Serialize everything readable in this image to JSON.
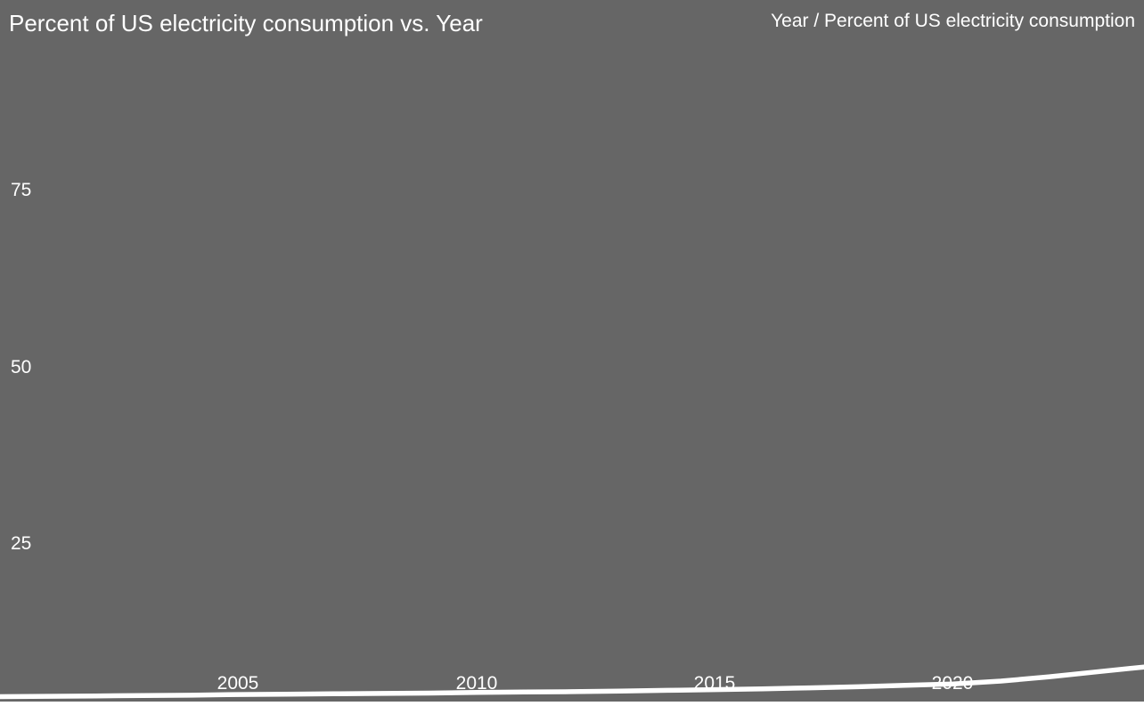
{
  "title": "Percent of US electricity consumption vs. Year",
  "frame_label": "Year / Percent of US electricity consumption",
  "chart_data": {
    "type": "line",
    "title": "Percent of US electricity consumption vs. Year",
    "series_label": "Year / Percent of US electricity consumption",
    "xlabel": "Year",
    "ylabel": "Percent of US electricity consumption",
    "x": [
      2000,
      2001,
      2002,
      2003,
      2004,
      2005,
      2006,
      2007,
      2008,
      2009,
      2010,
      2011,
      2012,
      2013,
      2014,
      2015,
      2016,
      2017,
      2018,
      2019,
      2020,
      2021,
      2022,
      2023,
      2024
    ],
    "values": [
      3.4,
      3.45,
      3.5,
      3.55,
      3.6,
      3.7,
      3.75,
      3.8,
      3.85,
      3.9,
      4.0,
      4.05,
      4.1,
      4.2,
      4.3,
      4.4,
      4.5,
      4.65,
      4.8,
      5.0,
      5.2,
      5.6,
      6.2,
      6.9,
      7.6
    ],
    "xtick_labels": [
      "2005",
      "2010",
      "2015",
      "2020"
    ],
    "ytick_labels": [
      "75",
      "50",
      "25"
    ],
    "xlim": [
      2000,
      2024
    ],
    "ylim": [
      0,
      100
    ],
    "grid": false,
    "legend_position": "top-right",
    "colors": {
      "background": "#666666",
      "line": "#ffffff",
      "text": "#ffffff",
      "page": "#ffffff"
    }
  }
}
